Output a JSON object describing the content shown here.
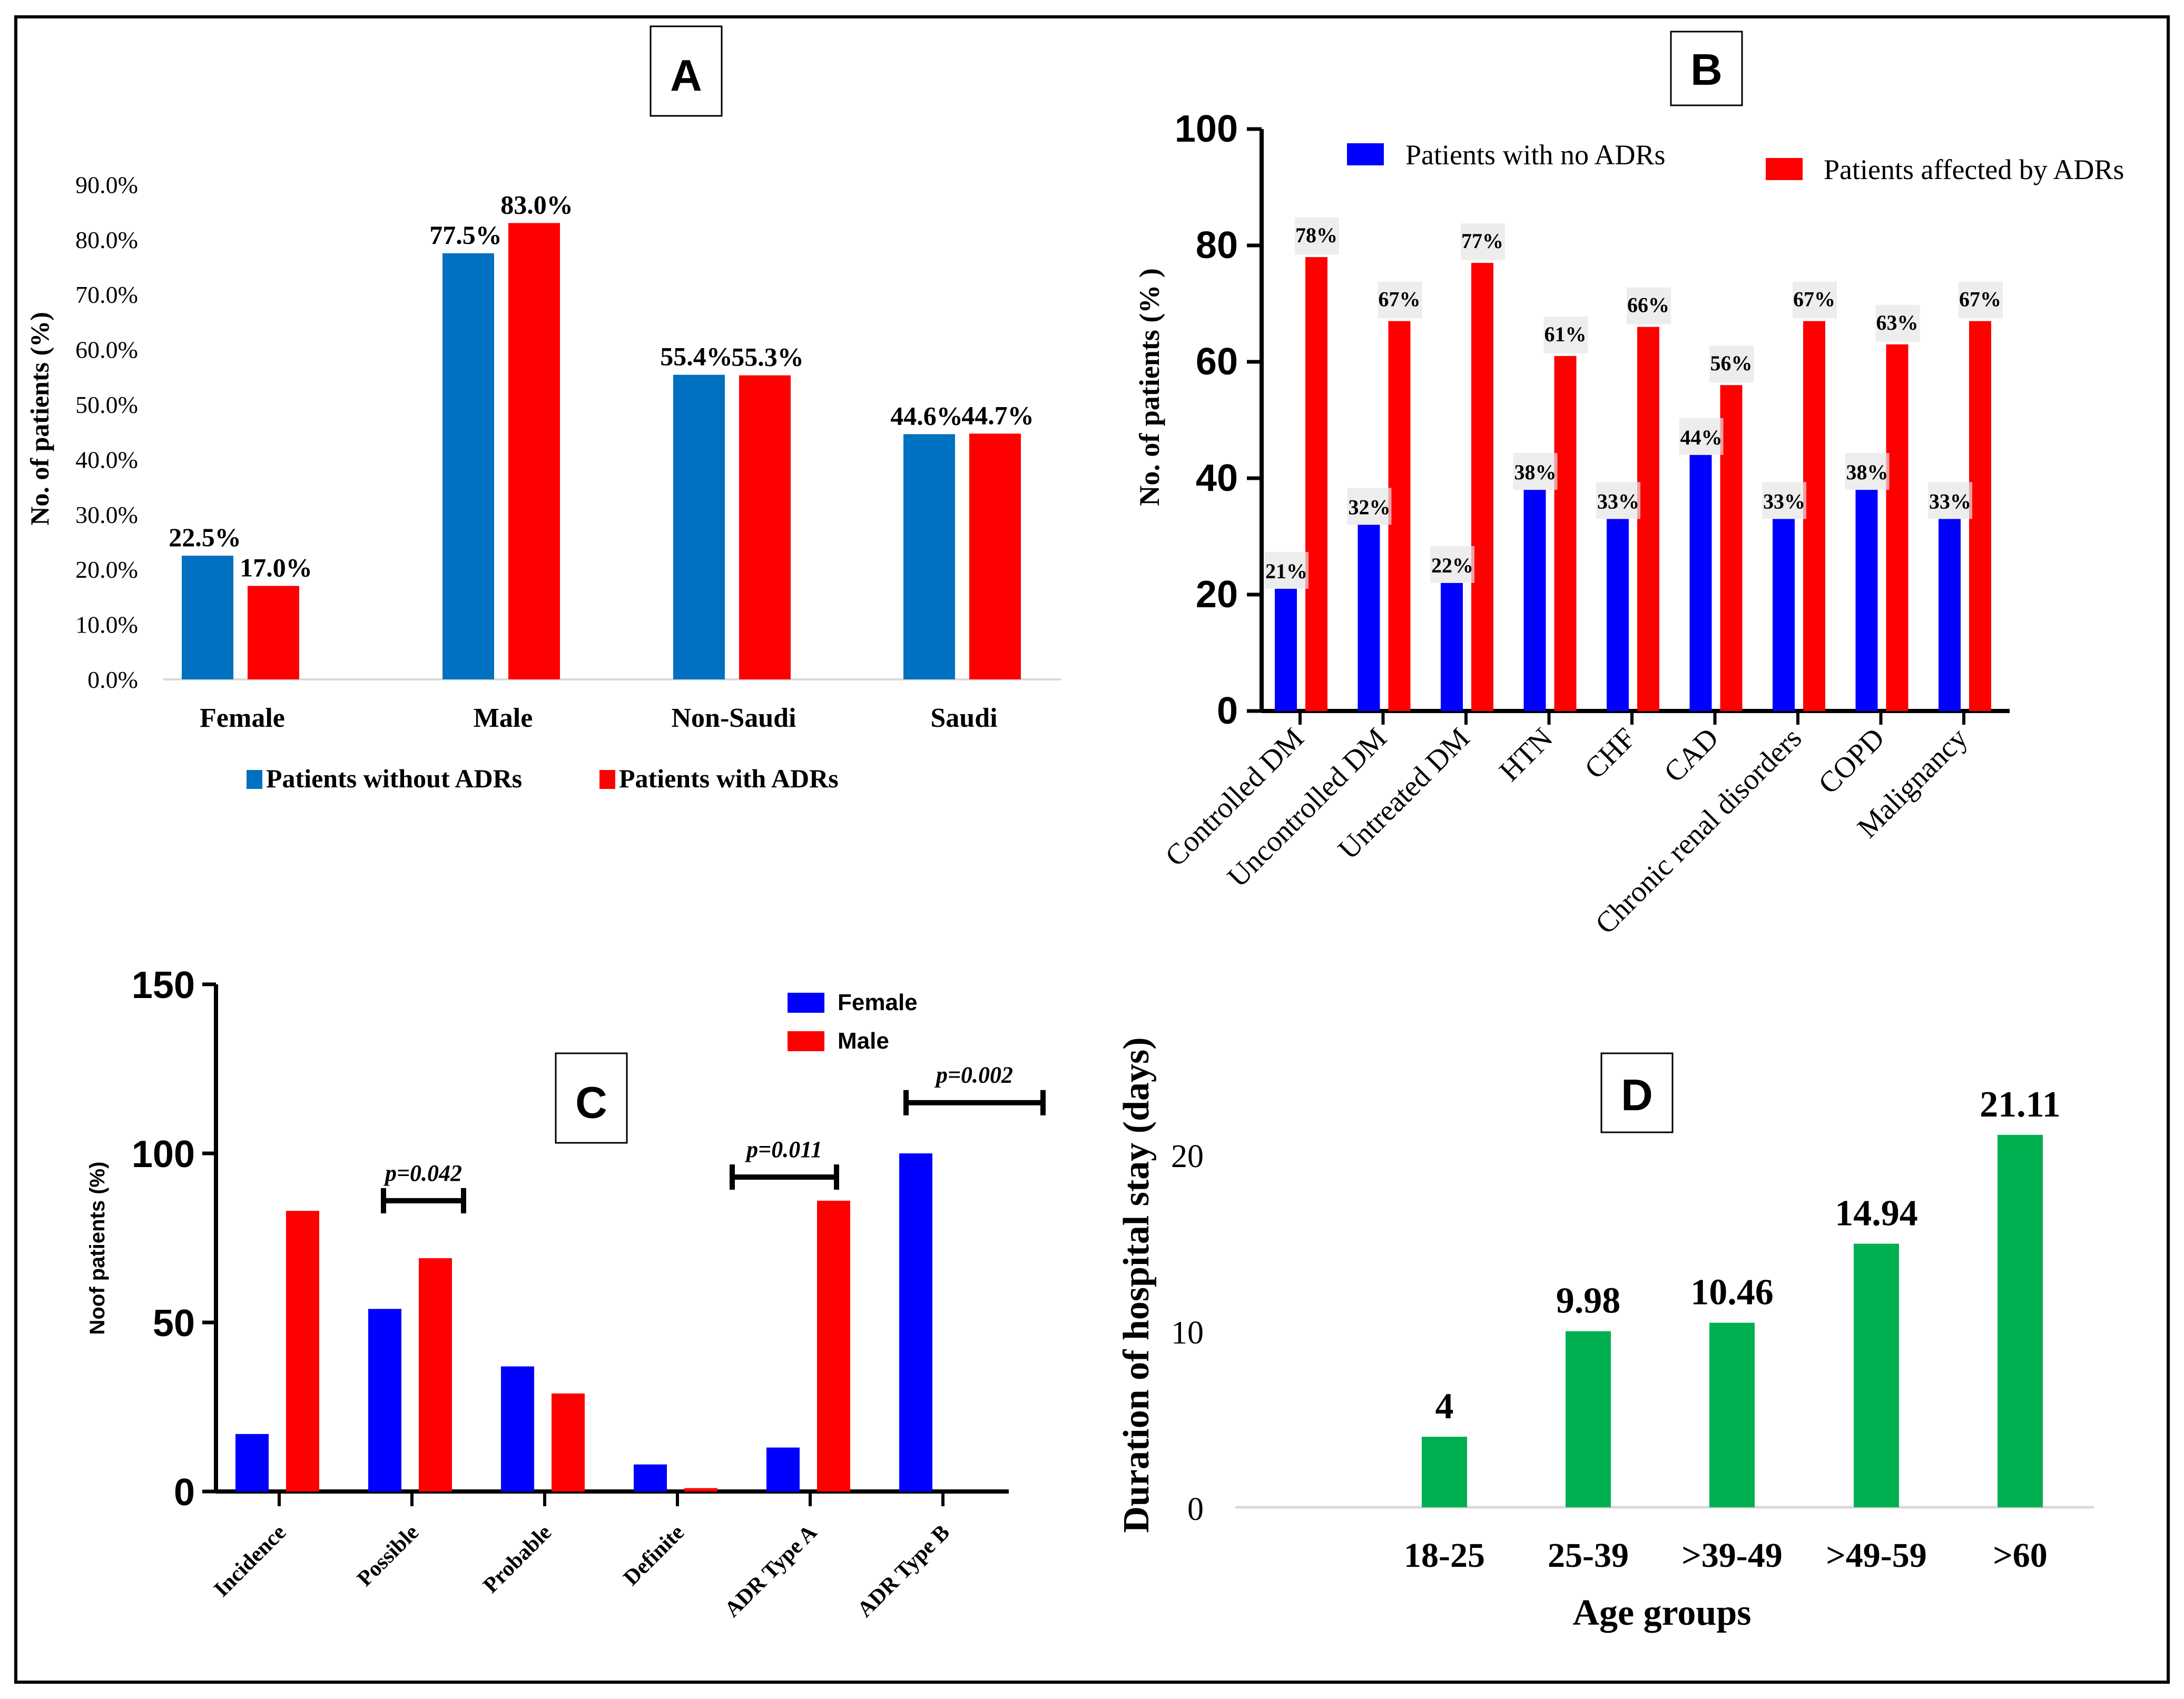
{
  "figure_title": "Four-panel figure on adverse drug reactions (ADRs)",
  "colors": {
    "panelA_blue": "#0070c0",
    "panelA_red": "#ff0000",
    "blue": "#0000ff",
    "red": "#ff0000",
    "green": "#00b050",
    "axis": "#000000"
  },
  "chart_data": [
    {
      "id": "A",
      "type": "bar",
      "panel_label": "A",
      "ylabel": "No. of patients (%)",
      "categories": [
        "Female",
        "Male",
        "Non-Saudi",
        "Saudi"
      ],
      "yticks": [
        "0.0%",
        "10.0%",
        "20.0%",
        "30.0%",
        "40.0%",
        "50.0%",
        "60.0%",
        "70.0%",
        "80.0%",
        "90.0%"
      ],
      "ylim": [
        0,
        90
      ],
      "series": [
        {
          "name": "Patients without ADRs",
          "values": [
            22.5,
            77.5,
            55.4,
            44.6
          ],
          "labels": [
            "22.5%",
            "77.5%",
            "55.4%",
            "44.6%"
          ]
        },
        {
          "name": "Patients with ADRs",
          "values": [
            17.0,
            83.0,
            55.3,
            44.7
          ],
          "labels": [
            "17.0%",
            "83.0%",
            "55.3%",
            "44.7%"
          ]
        }
      ],
      "legend": "bottom"
    },
    {
      "id": "B",
      "type": "bar",
      "panel_label": "B",
      "ylabel": "No. of patients (% )",
      "categories": [
        "Controlled DM",
        "Uncontrolled DM",
        "Untreated DM",
        "HTN",
        "CHF",
        "CAD",
        "Chronic renal disorders",
        "COPD",
        "Malignancy"
      ],
      "yticks": [
        "0",
        "20",
        "40",
        "60",
        "80",
        "100"
      ],
      "ylim": [
        0,
        100
      ],
      "series": [
        {
          "name": "Patients with no ADRs",
          "values": [
            21,
            32,
            22,
            38,
            33,
            44,
            33,
            38,
            33
          ],
          "labels": [
            "21%",
            "32%",
            "22%",
            "38%",
            "33%",
            "44%",
            "33%",
            "38%",
            "33%"
          ]
        },
        {
          "name": "Patients affected by ADRs",
          "values": [
            78,
            67,
            77,
            61,
            66,
            56,
            67,
            63,
            67
          ],
          "labels": [
            "78%",
            "67%",
            "77%",
            "61%",
            "66%",
            "56%",
            "67%",
            "63%",
            "67%"
          ]
        }
      ],
      "legend": "top"
    },
    {
      "id": "C",
      "type": "bar",
      "panel_label": "C",
      "ylabel": "Noof patients (%)",
      "categories": [
        "Incidence",
        "Possible",
        "Probable",
        "Definite",
        "ADR Type A",
        "ADR Type B"
      ],
      "yticks": [
        "0",
        "50",
        "100",
        "150"
      ],
      "ylim": [
        0,
        150
      ],
      "series": [
        {
          "name": "Female",
          "values": [
            17,
            54,
            37,
            8,
            13,
            100
          ]
        },
        {
          "name": "Male",
          "values": [
            83,
            69,
            29,
            1,
            86,
            0
          ]
        }
      ],
      "annotations": [
        {
          "category": "Possible",
          "text": "p=0.042",
          "y": 86
        },
        {
          "category": "ADR Type A",
          "text": "p=0.011",
          "y": 93
        },
        {
          "category": "ADR Type B",
          "text": "p=0.002",
          "y": 115
        }
      ],
      "legend": "top-right"
    },
    {
      "id": "D",
      "type": "bar",
      "panel_label": "D",
      "ylabel": "Duration of hospital stay (days)",
      "xlabel": "Age groups",
      "categories": [
        "18-25",
        "25-39",
        ">39-49",
        ">49-59",
        ">60"
      ],
      "yticks": [
        "0",
        "10",
        "20"
      ],
      "ylim": [
        0,
        22
      ],
      "values": [
        4,
        9.98,
        10.46,
        14.94,
        21.11
      ],
      "labels": [
        "4",
        "9.98",
        "10.46",
        "14.94",
        "21.11"
      ]
    }
  ]
}
